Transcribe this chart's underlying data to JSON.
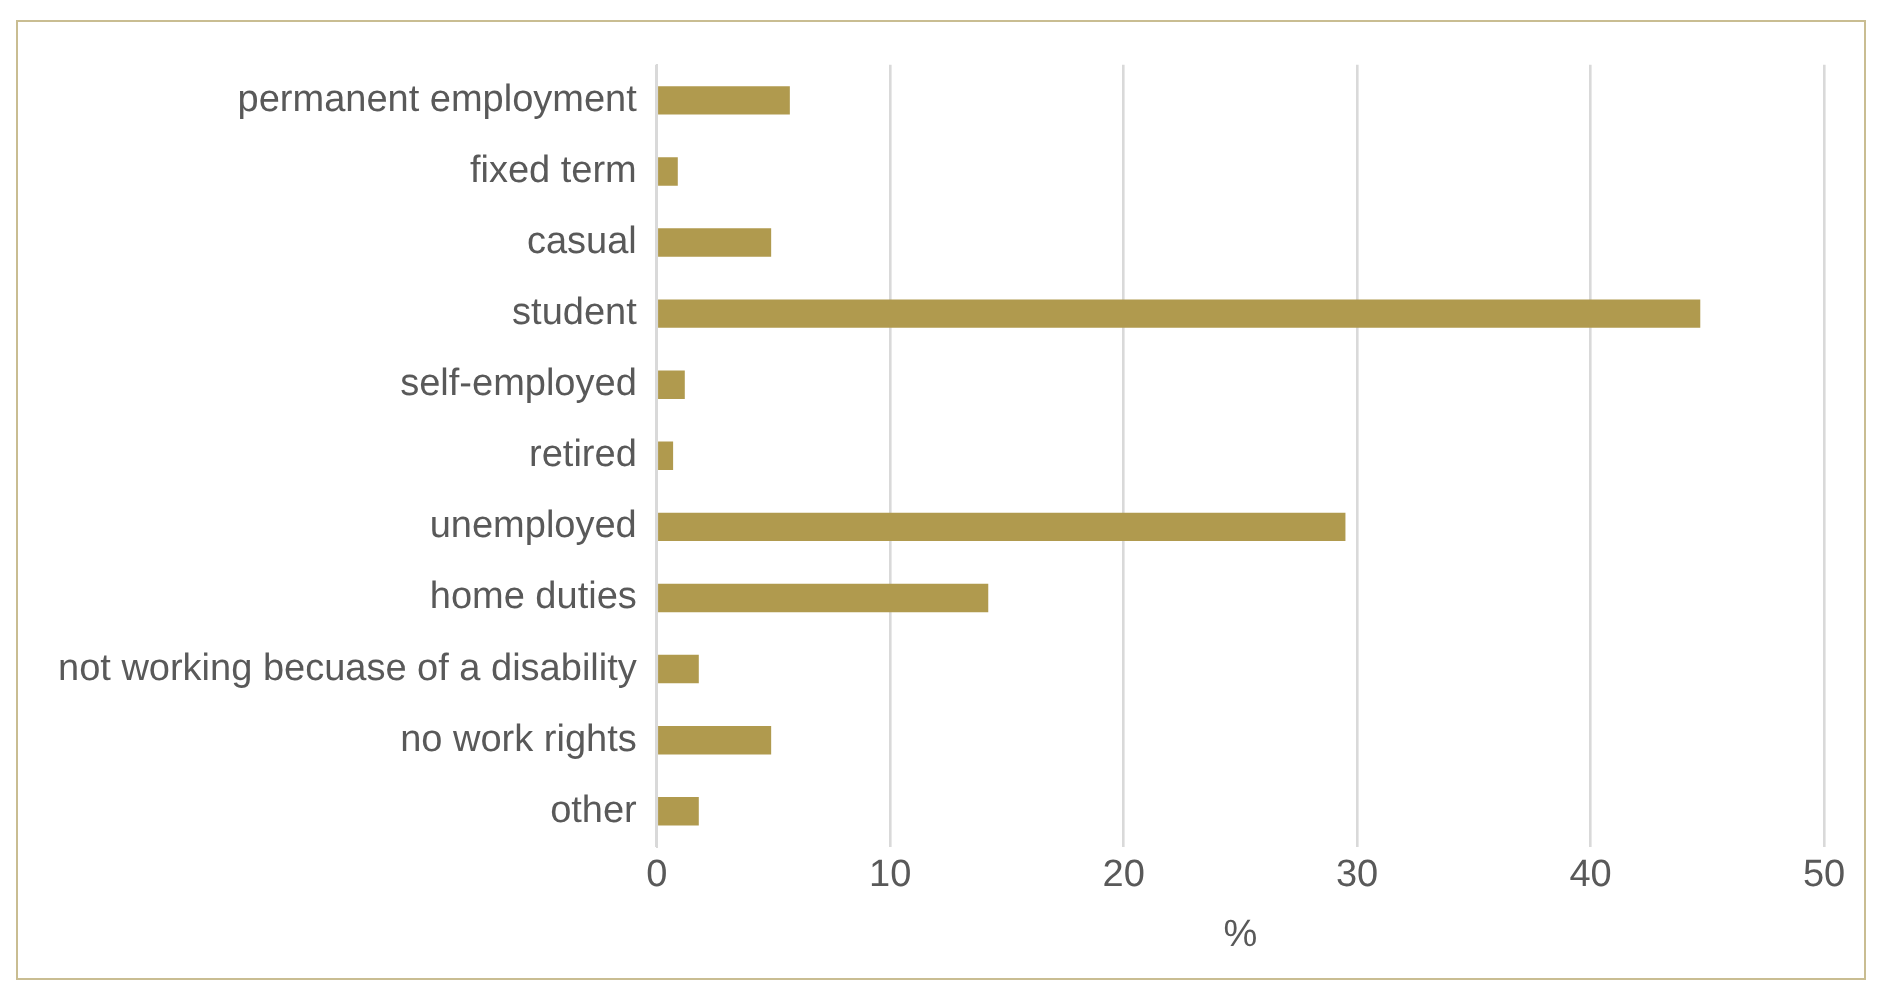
{
  "chart_data": {
    "type": "bar",
    "orientation": "horizontal",
    "xlabel": "%",
    "categories": [
      "permanent employment",
      "fixed term",
      "casual",
      "student",
      "self-employed",
      "retired",
      "unemployed",
      "home duties",
      "not working becuase of a disability",
      "no work rights",
      "other"
    ],
    "values": [
      5.7,
      0.9,
      4.9,
      44.7,
      1.2,
      0.7,
      29.5,
      14.2,
      1.8,
      4.9,
      1.8
    ],
    "color": "#b09a4e",
    "xlim": [
      0,
      50
    ],
    "xticks": [
      0,
      10,
      20,
      30,
      40,
      50
    ],
    "grid": "x",
    "legend": false
  }
}
